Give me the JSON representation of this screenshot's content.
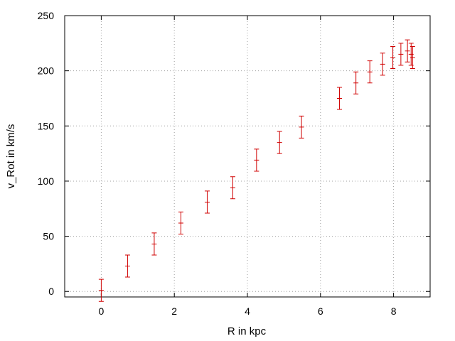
{
  "chart_data": {
    "type": "scatter",
    "xlabel": "R in kpc",
    "ylabel": "v_Rot in km/s",
    "xlim": [
      -1,
      9
    ],
    "ylim": [
      -5,
      250
    ],
    "x_ticks": [
      0,
      2,
      4,
      6,
      8
    ],
    "y_ticks": [
      0,
      50,
      100,
      150,
      200,
      250
    ],
    "grid": true,
    "series": [
      {
        "color": "#d00000",
        "points": [
          {
            "x": 0.0,
            "y": 1,
            "yerr": 10
          },
          {
            "x": 0.72,
            "y": 23,
            "yerr": 10
          },
          {
            "x": 1.45,
            "y": 43,
            "yerr": 10
          },
          {
            "x": 2.18,
            "y": 62,
            "yerr": 10
          },
          {
            "x": 2.9,
            "y": 81,
            "yerr": 10
          },
          {
            "x": 3.6,
            "y": 94,
            "yerr": 10
          },
          {
            "x": 4.25,
            "y": 119,
            "yerr": 10
          },
          {
            "x": 4.88,
            "y": 135,
            "yerr": 10
          },
          {
            "x": 5.48,
            "y": 149,
            "yerr": 10
          },
          {
            "x": 6.52,
            "y": 175,
            "yerr": 10
          },
          {
            "x": 6.97,
            "y": 189,
            "yerr": 10
          },
          {
            "x": 7.35,
            "y": 199,
            "yerr": 10
          },
          {
            "x": 7.7,
            "y": 206,
            "yerr": 10
          },
          {
            "x": 7.98,
            "y": 212,
            "yerr": 10
          },
          {
            "x": 8.2,
            "y": 215,
            "yerr": 10
          },
          {
            "x": 8.38,
            "y": 218,
            "yerr": 10
          },
          {
            "x": 8.48,
            "y": 215,
            "yerr": 10
          },
          {
            "x": 8.52,
            "y": 212,
            "yerr": 10
          }
        ]
      }
    ]
  }
}
